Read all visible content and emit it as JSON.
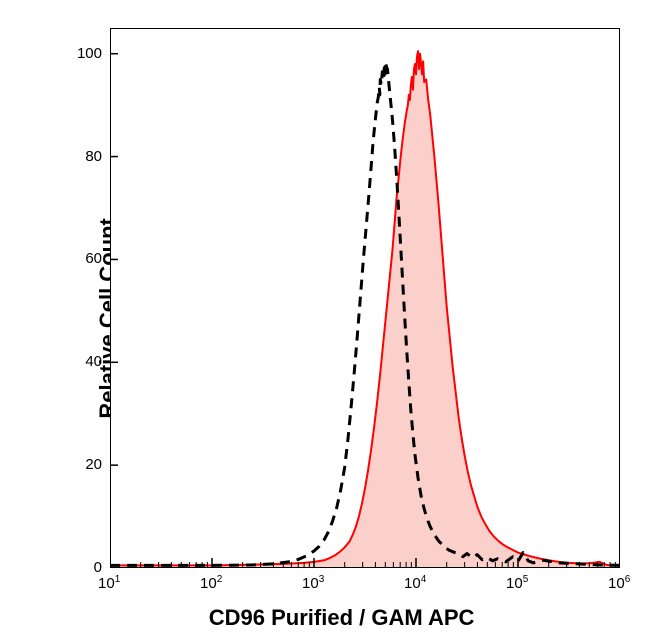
{
  "chart": {
    "type": "histogram",
    "xlabel": "CD96 Purified / GAM APC",
    "ylabel": "Relative Cell Count",
    "label_fontsize": 22,
    "tick_fontsize": 15,
    "background_color": "#ffffff",
    "plot_border_color": "#000000",
    "plot_border_width": 2,
    "x_axis": {
      "scale": "log",
      "min": 1,
      "max": 6,
      "ticks": [
        1,
        2,
        3,
        4,
        5,
        6
      ],
      "tick_labels": [
        "10^1",
        "10^2",
        "10^3",
        "10^4",
        "10^5",
        "10^6"
      ]
    },
    "y_axis": {
      "scale": "linear",
      "min": 0,
      "max": 105,
      "ticks": [
        0,
        20,
        40,
        60,
        80,
        100
      ]
    },
    "series": [
      {
        "name": "filled",
        "stroke_color": "#ff0000",
        "fill_color": "#fbd0ca",
        "stroke_width": 2,
        "dash": "none",
        "points": [
          [
            1.0,
            0.5
          ],
          [
            2.0,
            0.5
          ],
          [
            2.3,
            0.6
          ],
          [
            2.5,
            0.7
          ],
          [
            2.7,
            0.8
          ],
          [
            2.9,
            1.0
          ],
          [
            3.0,
            1.2
          ],
          [
            3.1,
            1.5
          ],
          [
            3.15,
            1.9
          ],
          [
            3.2,
            2.4
          ],
          [
            3.25,
            3.1
          ],
          [
            3.3,
            4.0
          ],
          [
            3.35,
            5.2
          ],
          [
            3.38,
            6.5
          ],
          [
            3.41,
            8.0
          ],
          [
            3.44,
            10.0
          ],
          [
            3.47,
            12.5
          ],
          [
            3.5,
            15.5
          ],
          [
            3.53,
            19.0
          ],
          [
            3.56,
            23.0
          ],
          [
            3.59,
            27.5
          ],
          [
            3.62,
            32.5
          ],
          [
            3.65,
            38.0
          ],
          [
            3.68,
            44.0
          ],
          [
            3.71,
            50.0
          ],
          [
            3.74,
            56.0
          ],
          [
            3.77,
            62.0
          ],
          [
            3.79,
            67.0
          ],
          [
            3.81,
            72.0
          ],
          [
            3.83,
            76.0
          ],
          [
            3.85,
            80.0
          ],
          [
            3.87,
            83.5
          ],
          [
            3.89,
            86.5
          ],
          [
            3.91,
            89.0
          ],
          [
            3.92,
            90.0
          ],
          [
            3.93,
            92.0
          ],
          [
            3.94,
            91.0
          ],
          [
            3.95,
            94.0
          ],
          [
            3.96,
            95.5
          ],
          [
            3.97,
            93.0
          ],
          [
            3.98,
            97.0
          ],
          [
            3.99,
            98.0
          ],
          [
            4.0,
            96.0
          ],
          [
            4.01,
            99.5
          ],
          [
            4.02,
            100.5
          ],
          [
            4.03,
            97.0
          ],
          [
            4.04,
            100.0
          ],
          [
            4.05,
            98.0
          ],
          [
            4.06,
            96.0
          ],
          [
            4.07,
            98.5
          ],
          [
            4.08,
            94.5
          ],
          [
            4.1,
            95.0
          ],
          [
            4.12,
            91.0
          ],
          [
            4.14,
            88.0
          ],
          [
            4.16,
            84.0
          ],
          [
            4.18,
            80.0
          ],
          [
            4.2,
            75.5
          ],
          [
            4.22,
            71.0
          ],
          [
            4.24,
            66.0
          ],
          [
            4.26,
            61.0
          ],
          [
            4.28,
            56.0
          ],
          [
            4.3,
            51.0
          ],
          [
            4.33,
            45.0
          ],
          [
            4.36,
            39.0
          ],
          [
            4.39,
            34.0
          ],
          [
            4.42,
            29.0
          ],
          [
            4.45,
            25.0
          ],
          [
            4.48,
            21.5
          ],
          [
            4.51,
            18.5
          ],
          [
            4.54,
            16.0
          ],
          [
            4.57,
            14.0
          ],
          [
            4.6,
            12.0
          ],
          [
            4.64,
            10.0
          ],
          [
            4.68,
            8.5
          ],
          [
            4.72,
            7.2
          ],
          [
            4.76,
            6.2
          ],
          [
            4.8,
            5.4
          ],
          [
            4.85,
            4.6
          ],
          [
            4.9,
            4.0
          ],
          [
            4.95,
            3.5
          ],
          [
            5.0,
            3.0
          ],
          [
            5.05,
            2.7
          ],
          [
            5.1,
            2.4
          ],
          [
            5.2,
            1.9
          ],
          [
            5.3,
            1.5
          ],
          [
            5.4,
            1.2
          ],
          [
            5.5,
            1.0
          ],
          [
            5.6,
            0.9
          ],
          [
            5.7,
            0.9
          ],
          [
            5.8,
            1.2
          ],
          [
            5.85,
            0.7
          ],
          [
            5.9,
            0.5
          ],
          [
            6.0,
            0.5
          ]
        ]
      },
      {
        "name": "dashed",
        "stroke_color": "#000000",
        "fill_color": "none",
        "stroke_width": 3,
        "dash": "10,7",
        "points": [
          [
            1.0,
            0.5
          ],
          [
            2.0,
            0.5
          ],
          [
            2.4,
            0.6
          ],
          [
            2.6,
            0.8
          ],
          [
            2.75,
            1.2
          ],
          [
            2.85,
            1.7
          ],
          [
            2.93,
            2.4
          ],
          [
            3.0,
            3.3
          ],
          [
            3.05,
            4.2
          ],
          [
            3.1,
            5.5
          ],
          [
            3.14,
            7.0
          ],
          [
            3.18,
            9.0
          ],
          [
            3.22,
            11.5
          ],
          [
            3.26,
            15.0
          ],
          [
            3.3,
            19.5
          ],
          [
            3.33,
            24.5
          ],
          [
            3.36,
            30.5
          ],
          [
            3.39,
            37.0
          ],
          [
            3.42,
            44.0
          ],
          [
            3.45,
            51.5
          ],
          [
            3.48,
            59.0
          ],
          [
            3.51,
            66.0
          ],
          [
            3.54,
            73.0
          ],
          [
            3.56,
            78.0
          ],
          [
            3.58,
            83.0
          ],
          [
            3.6,
            87.0
          ],
          [
            3.62,
            90.5
          ],
          [
            3.63,
            91.5
          ],
          [
            3.64,
            93.5
          ],
          [
            3.645,
            92.0
          ],
          [
            3.65,
            95.0
          ],
          [
            3.66,
            94.0
          ],
          [
            3.67,
            96.5
          ],
          [
            3.68,
            95.0
          ],
          [
            3.69,
            97.5
          ],
          [
            3.695,
            96.0
          ],
          [
            3.7,
            98.5
          ],
          [
            3.71,
            97.5
          ],
          [
            3.72,
            97.0
          ],
          [
            3.73,
            95.0
          ],
          [
            3.74,
            93.0
          ],
          [
            3.75,
            91.0
          ],
          [
            3.77,
            87.0
          ],
          [
            3.79,
            82.0
          ],
          [
            3.81,
            76.0
          ],
          [
            3.83,
            69.5
          ],
          [
            3.85,
            62.5
          ],
          [
            3.87,
            55.5
          ],
          [
            3.89,
            48.5
          ],
          [
            3.91,
            42.0
          ],
          [
            3.93,
            36.0
          ],
          [
            3.95,
            30.5
          ],
          [
            3.97,
            26.0
          ],
          [
            3.99,
            22.0
          ],
          [
            4.02,
            17.5
          ],
          [
            4.05,
            14.0
          ],
          [
            4.08,
            11.5
          ],
          [
            4.11,
            9.5
          ],
          [
            4.14,
            8.0
          ],
          [
            4.18,
            6.5
          ],
          [
            4.22,
            5.3
          ],
          [
            4.27,
            4.3
          ],
          [
            4.32,
            3.5
          ],
          [
            4.38,
            3.0
          ],
          [
            4.42,
            2.8
          ],
          [
            4.46,
            2.2
          ],
          [
            4.5,
            2.8
          ],
          [
            4.55,
            2.0
          ],
          [
            4.6,
            2.6
          ],
          [
            4.65,
            1.6
          ],
          [
            4.7,
            2.0
          ],
          [
            4.75,
            1.4
          ],
          [
            4.8,
            1.8
          ],
          [
            4.88,
            1.2
          ],
          [
            4.95,
            2.2
          ],
          [
            5.0,
            1.3
          ],
          [
            5.05,
            3.0
          ],
          [
            5.1,
            1.4
          ],
          [
            5.15,
            1.0
          ],
          [
            5.25,
            1.5
          ],
          [
            5.4,
            1.0
          ],
          [
            5.6,
            0.8
          ],
          [
            5.8,
            0.6
          ],
          [
            6.0,
            0.5
          ]
        ]
      }
    ]
  }
}
